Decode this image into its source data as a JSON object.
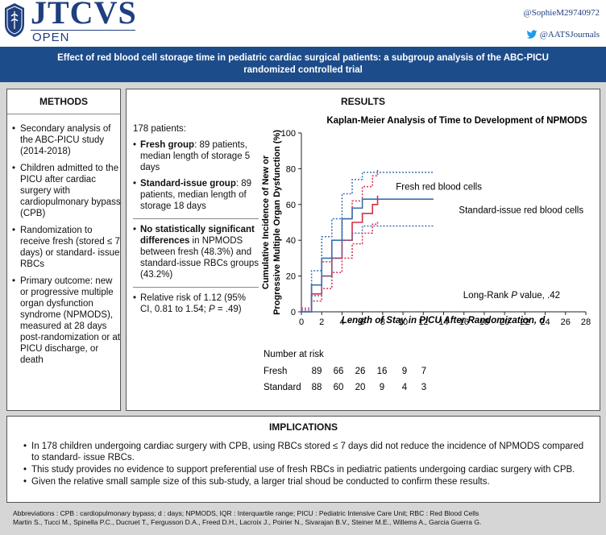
{
  "header": {
    "logo_main": "JTCVS",
    "logo_sub": "OPEN",
    "handle_author": "@SophieM29740972",
    "handle_journal": "@AATSJournals"
  },
  "title": "Effect of red blood cell storage time in pediatric cardiac surgical patients: a subgroup analysis of the ABC-PICU randomized controlled trial",
  "methods": {
    "heading": "METHODS",
    "items": [
      "Secondary analysis of the ABC-PICU study (2014-2018)",
      "Children admitted to the PICU after cardiac surgery with cardiopulmonary bypass (CPB)",
      "Randomization to receive fresh (stored ≤ 7 days) or standard- issue RBCs",
      "Primary outcome: new or progressive multiple organ dysfunction syndrome (NPMODS), measured at 28 days post-randomization or at PICU discharge, or death"
    ]
  },
  "results": {
    "heading": "RESULTS",
    "intro": "178 patients:",
    "fresh_bold": "Fresh group",
    "fresh_rest": ": 89 patients, median length of storage 5 days",
    "standard_bold": "Standard-issue group",
    "standard_rest": ": 89 patients, median length of storage 18 days",
    "nosig_bold": "No statistically significant differences",
    "nosig_rest": " in NPMODS between fresh (48.3%) and standard-issue RBCs groups (43.2%)",
    "rr_pre": "Relative risk of 1.12 (95% CI, 0.81 to 1.54; ",
    "rr_p": "P",
    "rr_post": " = .49)"
  },
  "chart_data": {
    "type": "line",
    "title": "Kaplan-Meier Analysis of Time to Development of NPMODS",
    "xlabel": "Length of Stay in PICU After Randomization, d",
    "ylabel": "Cumulative Incidence of New or Progressive Multiple Organ Dysfunction (%)",
    "xlim": [
      0,
      28
    ],
    "ylim": [
      0,
      100
    ],
    "xticks": [
      0,
      2,
      4,
      6,
      8,
      10,
      12,
      14,
      16,
      18,
      20,
      22,
      24,
      26,
      28
    ],
    "yticks": [
      0,
      20,
      40,
      60,
      80,
      100
    ],
    "annotation_prefix": "Long-Rank ",
    "annotation_p": "P",
    "annotation_suffix": " value, .42",
    "colors": {
      "fresh": "#d62d4a",
      "standard": "#3a6fb0"
    },
    "series": [
      {
        "name": "Fresh red blood cells",
        "x": [
          0,
          1,
          2,
          3,
          4,
          5,
          6,
          7,
          7.5
        ],
        "values": [
          0,
          10,
          20,
          30,
          40,
          50,
          55,
          60,
          65
        ],
        "lower_ci": [
          0,
          6,
          13,
          22,
          30,
          38,
          44,
          49,
          51
        ],
        "upper_ci": [
          2,
          15,
          28,
          40,
          52,
          62,
          70,
          76,
          80
        ]
      },
      {
        "name": "Standard-issue red blood cells",
        "x": [
          0,
          1,
          2,
          3,
          4,
          5,
          6,
          13
        ],
        "values": [
          0,
          15,
          30,
          40,
          52,
          58,
          63,
          63
        ],
        "lower_ci": [
          0,
          9,
          20,
          30,
          40,
          44,
          48,
          48
        ],
        "upper_ci": [
          1,
          23,
          42,
          52,
          66,
          74,
          78,
          78
        ]
      }
    ],
    "risk_table": {
      "heading": "Number at risk",
      "rows": [
        {
          "label": "Fresh",
          "values": [
            "89",
            "66",
            "26",
            "16",
            "9",
            "7"
          ]
        },
        {
          "label": "Standard",
          "values": [
            "88",
            "60",
            "20",
            "9",
            "4",
            "3"
          ]
        }
      ]
    }
  },
  "implications": {
    "heading": "IMPLICATIONS",
    "items": [
      "In 178 children undergoing cardiac surgery with CPB, using RBCs stored ≤ 7 days did not reduce the incidence of NPMODS compared to standard- issue RBCs.",
      "This study provides no evidence to support preferential use of fresh RBCs in pediatric patients undergoing cardiac surgery with CPB.",
      "Given the relative small sample size of this sub-study, a larger trial shoud be conducted to confirm these results."
    ]
  },
  "footer": {
    "abbreviations": "Abbreviations : CPB : cardiopulmonary bypass; d : days; NPMODS, IQR : Interquartile range; PICU : Pediatric Intensive Care Unit; RBC : Red Blood Cells",
    "authors": "Martin S., Tucci M., Spinella P.C., Ducruet T., Fergusson D.A., Freed D.H., Lacroix J., Poirier N., Sivarajan B.V., Steiner M.E., Willems A., Garcia Guerra G."
  }
}
